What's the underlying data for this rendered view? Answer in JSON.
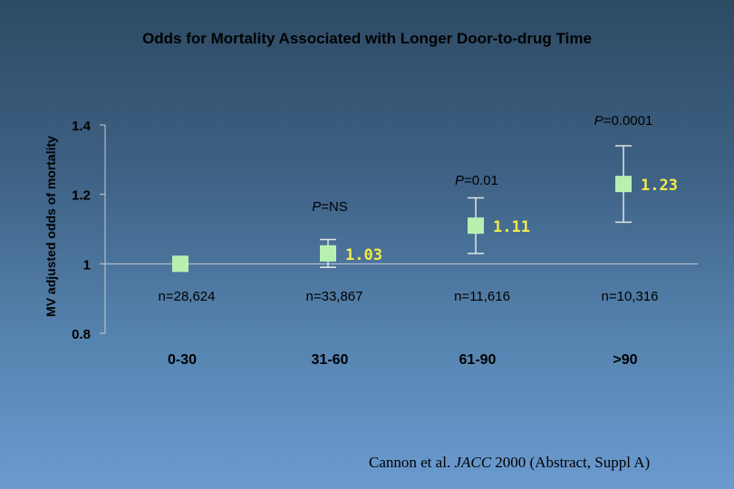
{
  "slide": {
    "title": "Odds for Mortality Associated with Longer Door-to-drug Time",
    "citation_authors": "Cannon et al.",
    "citation_journal": "JACC",
    "citation_rest": "2000 (Abstract, Suppl A)"
  },
  "colors": {
    "axis": "#c8cdd3",
    "marker": "#b8f0b0",
    "errorbar": "#dfe6e2",
    "value_label": "#f2ea4a",
    "tick_label": "#000000"
  },
  "chart_data": {
    "type": "scatter",
    "title": "Odds for Mortality Associated with Longer Door-to-drug Time",
    "xlabel": "",
    "ylabel": "MV adjusted odds of mortality",
    "ylim": [
      0.8,
      1.4
    ],
    "yticks": [
      0.8,
      1,
      1.2,
      1.4
    ],
    "ytick_labels": [
      "0.8",
      "1",
      "1.2",
      "1.4"
    ],
    "categories": [
      "0-30",
      "31-60",
      "61-90",
      ">90"
    ],
    "values": [
      1.0,
      1.03,
      1.11,
      1.23
    ],
    "value_labels": [
      "",
      "1.03",
      "1.11",
      "1.23"
    ],
    "ci_lower": [
      null,
      0.99,
      1.03,
      1.12
    ],
    "ci_upper": [
      null,
      1.07,
      1.19,
      1.34
    ],
    "sample_sizes": [
      "n=28,624",
      "n=33,867",
      "n=11,616",
      "n=10,316"
    ],
    "p_values": [
      "",
      "=NS",
      "=0.01",
      "=0.0001"
    ],
    "p_symbol": "P",
    "legend": "none",
    "grid": false
  }
}
